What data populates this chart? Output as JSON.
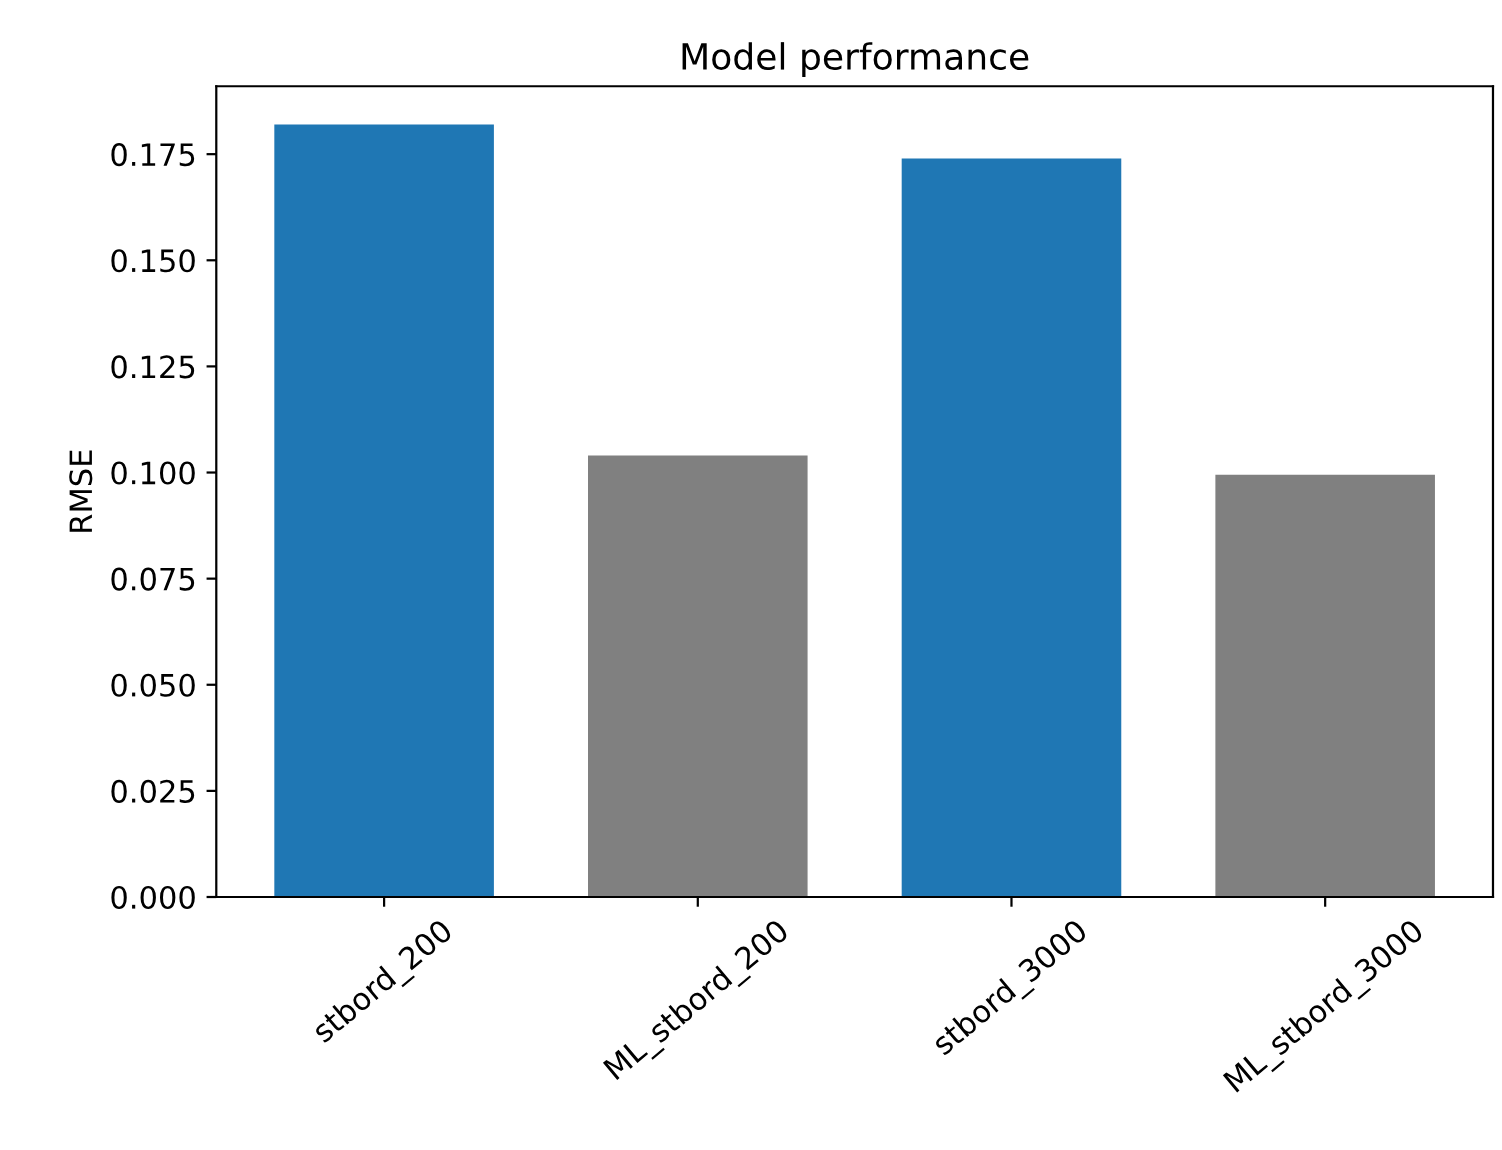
{
  "chart_data": {
    "type": "bar",
    "title": "Model performance",
    "ylabel": "RMSE",
    "categories": [
      "stbord_200",
      "ML_stbord_200",
      "stbord_3000",
      "ML_stbord_3000"
    ],
    "values": [
      0.182,
      0.104,
      0.174,
      0.0995
    ],
    "colors": [
      "#1f77b4",
      "#808080",
      "#1f77b4",
      "#808080"
    ],
    "ylim": [
      0,
      0.191
    ],
    "yticks": [
      {
        "value": 0,
        "label": "0.000"
      },
      {
        "value": 0.025,
        "label": "0.025"
      },
      {
        "value": 0.05,
        "label": "0.050"
      },
      {
        "value": 0.075,
        "label": "0.075"
      },
      {
        "value": 0.1,
        "label": "0.100"
      },
      {
        "value": 0.125,
        "label": "0.125"
      },
      {
        "value": 0.15,
        "label": "0.150"
      },
      {
        "value": 0.175,
        "label": "0.175"
      }
    ],
    "grid": false
  }
}
